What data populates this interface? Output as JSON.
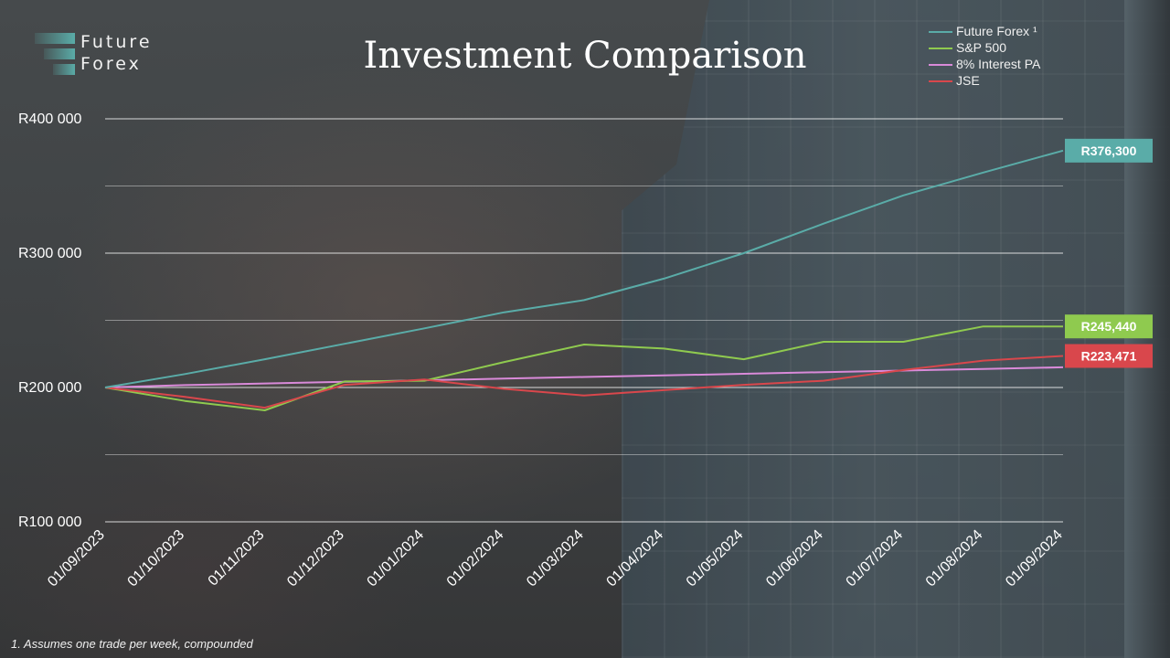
{
  "brand": {
    "line1": "Future",
    "line2": "Forex",
    "accent": "#5aaca8"
  },
  "footnote": "1. Assumes one trade per week, compounded",
  "chart_data": {
    "type": "line",
    "title": "Investment Comparison",
    "xlabel": "",
    "ylabel": "",
    "categories": [
      "01/09/2023",
      "01/10/2023",
      "01/11/2023",
      "01/12/2023",
      "01/01/2024",
      "01/02/2024",
      "01/03/2024",
      "01/04/2024",
      "01/05/2024",
      "01/06/2024",
      "01/07/2024",
      "01/08/2024",
      "01/09/2024"
    ],
    "ylim": [
      100000,
      400000
    ],
    "yticks": [
      100000,
      200000,
      300000,
      400000
    ],
    "ytick_labels": [
      "R100 000",
      "R200 000",
      "R300 000",
      "R400 000"
    ],
    "grid": true,
    "legend_position": "top-right",
    "series": [
      {
        "name": "Future Forex ¹",
        "color": "#5aaca8",
        "values": [
          200000,
          210000,
          221000,
          232500,
          244000,
          256000,
          265000,
          281000,
          300000,
          322000,
          343000,
          360000,
          376300
        ],
        "end_label": "R376,300"
      },
      {
        "name": "S&P 500",
        "color": "#8fca4f",
        "values": [
          200000,
          190000,
          183000,
          204500,
          205000,
          219000,
          232000,
          229000,
          221000,
          234000,
          234000,
          245440,
          245440
        ],
        "end_label": "R245,440"
      },
      {
        "name": "8% Interest PA",
        "color": "#d98ad9",
        "values": [
          200000,
          201800,
          203000,
          204200,
          205400,
          206600,
          207800,
          209000,
          210200,
          211400,
          212600,
          213800,
          215000
        ],
        "end_label": ""
      },
      {
        "name": "JSE",
        "color": "#d9474c",
        "values": [
          200000,
          193000,
          185000,
          202000,
          206000,
          199000,
          194000,
          198000,
          202000,
          205000,
          213000,
          220000,
          223471
        ],
        "end_label": "R223,471"
      }
    ]
  }
}
